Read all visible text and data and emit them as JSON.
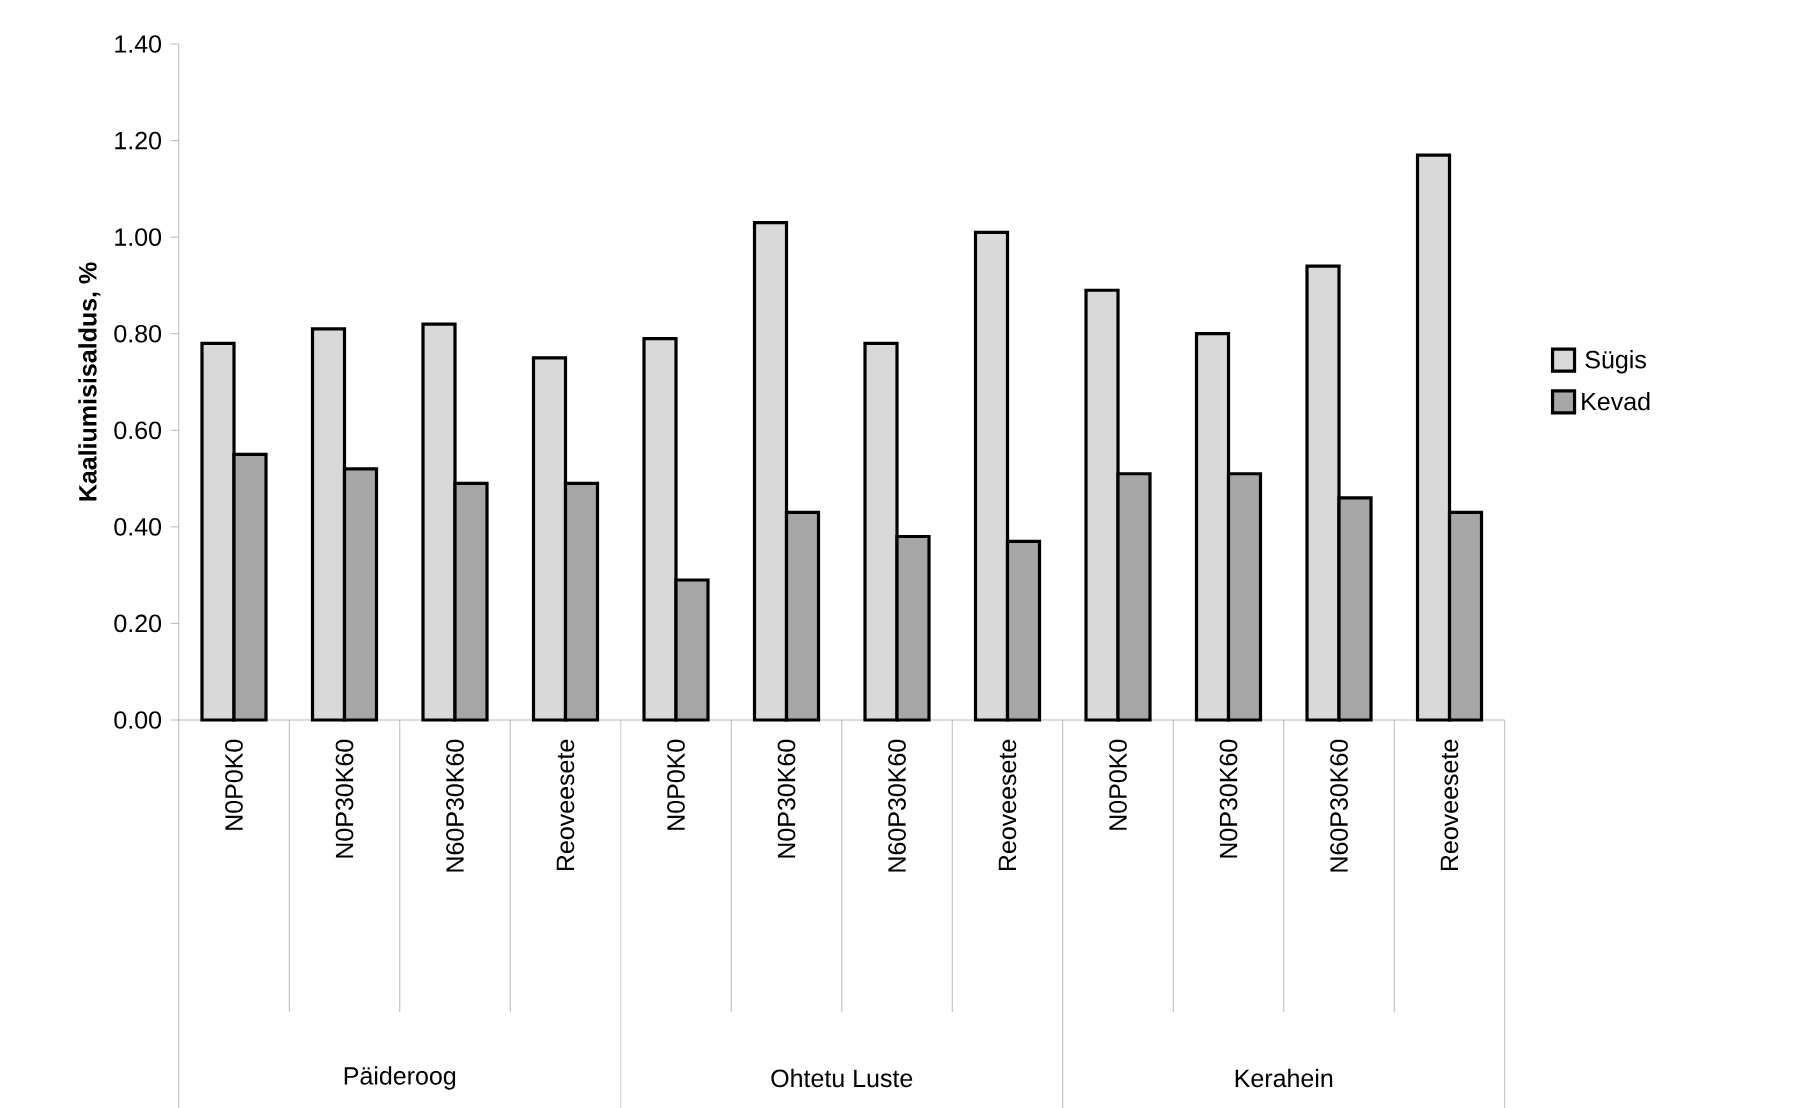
{
  "chart_data": {
    "type": "bar",
    "ylabel": "Kaaliumisisaldus, %",
    "categories": [
      "N0P0K0",
      "N0P30K60",
      "N60P30K60",
      "Reoveesete",
      "N0P0K0",
      "N0P30K60",
      "N60P30K60",
      "Reoveesete",
      "N0P0K0",
      "N0P30K60",
      "N60P30K60",
      "Reoveesete"
    ],
    "annotations": [
      "Päideroog",
      "Ohtetu Luste",
      "Kerahein"
    ],
    "series": [
      {
        "name": "Sügis",
        "color": "#d9d9d9",
        "values": [
          0.78,
          0.81,
          0.82,
          0.75,
          0.79,
          1.03,
          0.78,
          1.01,
          0.89,
          0.8,
          0.94,
          1.17
        ]
      },
      {
        "name": "Kevad",
        "color": "#a6a6a6",
        "values": [
          0.55,
          0.52,
          0.49,
          0.49,
          0.29,
          0.43,
          0.38,
          0.37,
          0.51,
          0.51,
          0.46,
          0.43
        ]
      }
    ],
    "ylim": [
      0,
      1.4
    ],
    "yticks": [
      {
        "value": 0,
        "label": "0.00"
      },
      {
        "value": 0.2,
        "label": "0.20"
      },
      {
        "value": 0.4,
        "label": "0.40"
      },
      {
        "value": 0.6,
        "label": "0.60"
      },
      {
        "value": 0.8,
        "label": "0.80"
      },
      {
        "value": 1.0,
        "label": "1.00"
      },
      {
        "value": 1.2,
        "label": "1.20"
      },
      {
        "value": 1.4,
        "label": "1.40"
      }
    ],
    "grid": false,
    "legend": "right"
  }
}
